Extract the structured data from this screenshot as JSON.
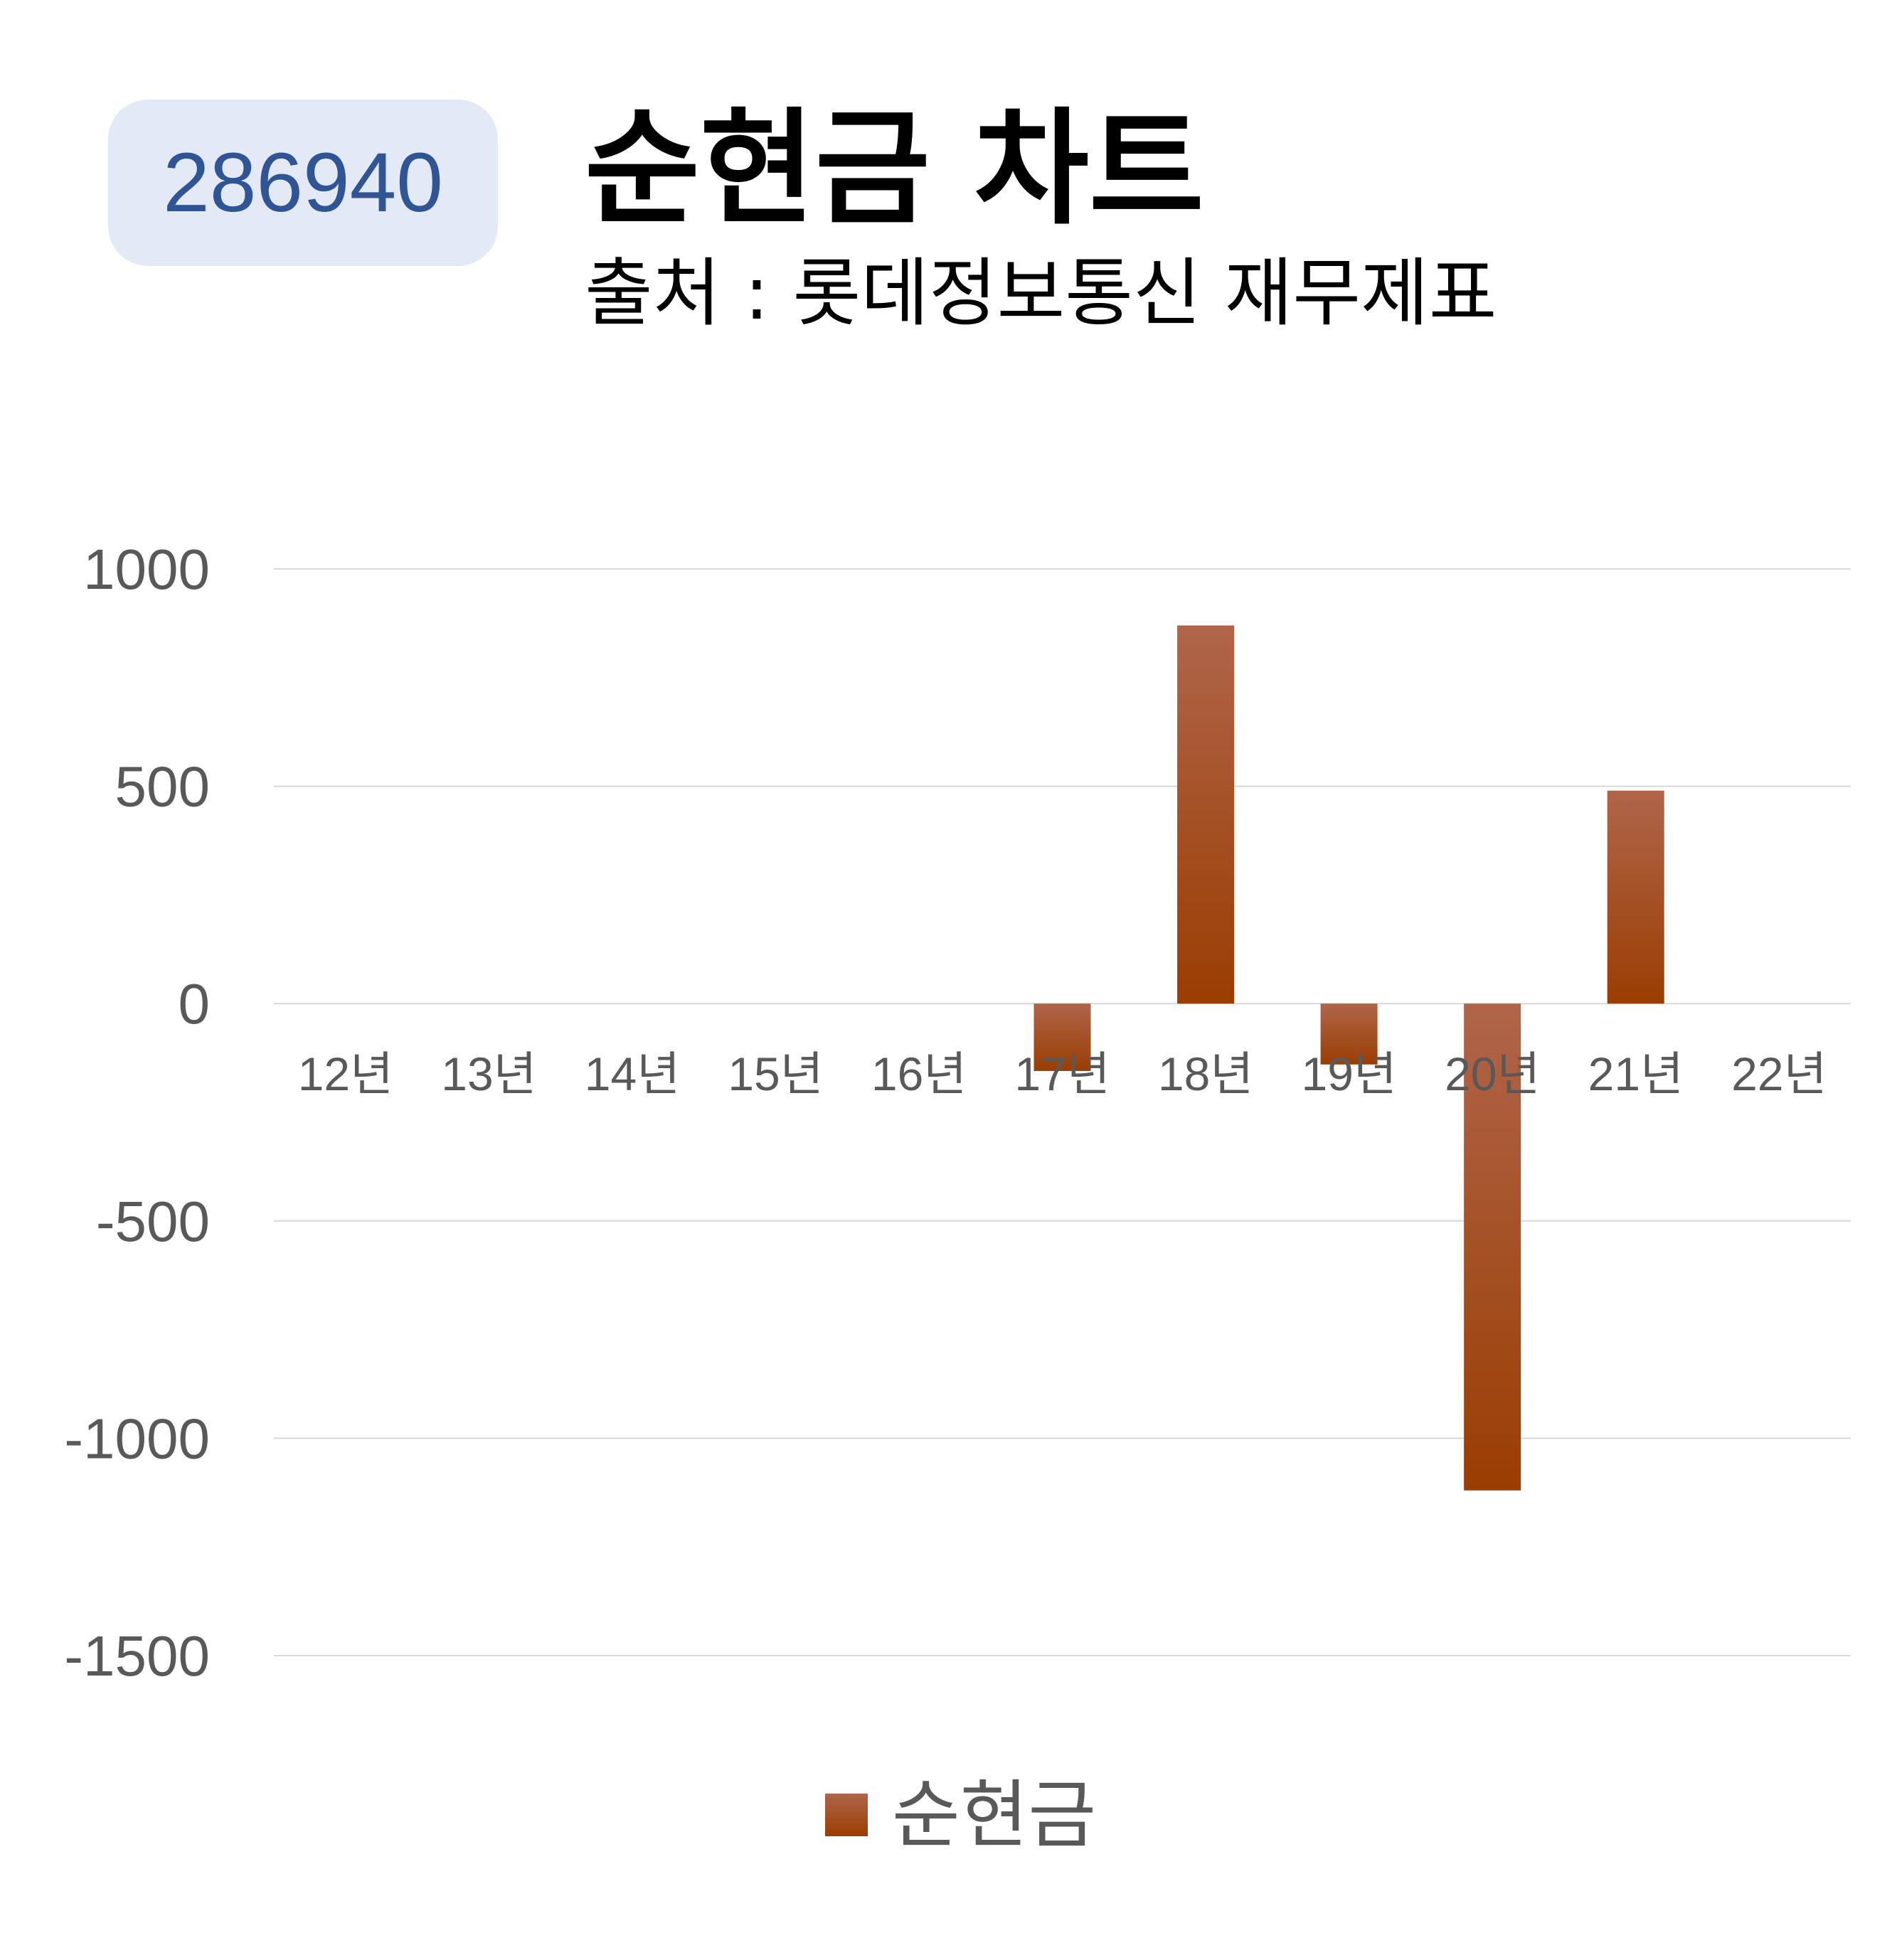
{
  "badge": {
    "code": "286940"
  },
  "header": {
    "title": "순현금 차트",
    "subtitle": "출처 : 롯데정보통신 재무제표"
  },
  "colors": {
    "bar_top": "#b0654a",
    "bar_bottom": "#9a3d02",
    "grid": "#d9d9d9",
    "badge_bg": "#e3e9f5",
    "badge_text": "#2f5597"
  },
  "chart_data": {
    "type": "bar",
    "title": "순현금 차트",
    "subtitle": "출처 : 롯데정보통신 재무제표",
    "categories": [
      "12년",
      "13년",
      "14년",
      "15년",
      "16년",
      "17년",
      "18년",
      "19년",
      "20년",
      "21년",
      "22년"
    ],
    "series": [
      {
        "name": "순현금",
        "values": [
          null,
          null,
          null,
          null,
          null,
          -155,
          870,
          -140,
          -1120,
          490,
          null
        ]
      }
    ],
    "yticks": [
      1000,
      500,
      0,
      -500,
      -1000,
      -1500
    ],
    "ylim": [
      -1500,
      1000
    ],
    "grid": true,
    "legend": "bottom"
  }
}
